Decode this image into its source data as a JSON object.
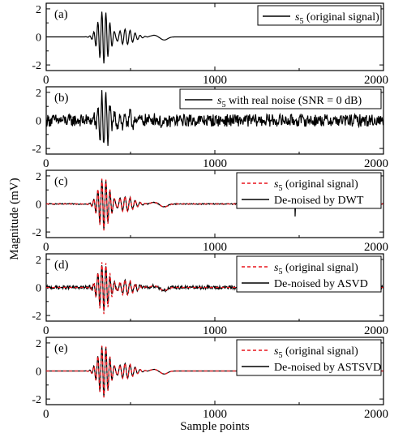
{
  "figure": {
    "ylabel": "Magnitude (mV)",
    "xlabel": "Sample points"
  },
  "chart_data": [
    {
      "type": "line",
      "panel_label": "(a)",
      "xlim": [
        0,
        2000
      ],
      "ylim": [
        -2.4,
        2.4
      ],
      "x_ticks": [
        "0",
        "1000",
        "2000"
      ],
      "y_ticks": [
        "-2",
        "0",
        "2"
      ],
      "legend_position": "top-right",
      "series": [
        {
          "name": "s5 (original signal)",
          "legend_text": " (original signal)",
          "color": "#000000",
          "dash": "solid",
          "noise": 0,
          "burst_scale": 1.0
        }
      ]
    },
    {
      "type": "line",
      "panel_label": "(b)",
      "xlim": [
        0,
        2000
      ],
      "ylim": [
        -2.4,
        2.4
      ],
      "x_ticks": [
        "0",
        "1000",
        "2000"
      ],
      "y_ticks": [
        "-2",
        "0",
        "2"
      ],
      "legend_position": "top-right",
      "series": [
        {
          "name": "s5 with real noise (SNR = 0 dB)",
          "legend_text": " with real noise (SNR = 0 dB)",
          "color": "#000000",
          "dash": "solid",
          "noise": 0.26,
          "burst_scale": 1.0
        }
      ]
    },
    {
      "type": "line",
      "panel_label": "(c)",
      "xlim": [
        0,
        2000
      ],
      "ylim": [
        -2.4,
        2.4
      ],
      "x_ticks": [
        "0",
        "1000",
        "2000"
      ],
      "y_ticks": [
        "-2",
        "0",
        "2"
      ],
      "legend_position": "top-right",
      "series": [
        {
          "name": "De-noised by DWT",
          "legend_text": "De-noised by DWT",
          "color": "#000000",
          "dash": "solid",
          "noise": 0.02,
          "burst_scale": 0.95,
          "spike_at": 1475,
          "spike_amp": 0.35
        },
        {
          "name": "s5 (original signal)",
          "legend_text": " (original signal)",
          "color": "#e8141b",
          "dash": "dashed",
          "noise": 0,
          "burst_scale": 1.0
        }
      ]
    },
    {
      "type": "line",
      "panel_label": "(d)",
      "xlim": [
        0,
        2000
      ],
      "ylim": [
        -2.4,
        2.4
      ],
      "x_ticks": [
        "0",
        "1000",
        "2000"
      ],
      "y_ticks": [
        "-2",
        "0",
        "2"
      ],
      "legend_position": "top-right",
      "series": [
        {
          "name": "De-noised by ASVD",
          "legend_text": "De-noised by ASVD",
          "color": "#000000",
          "dash": "solid",
          "noise": 0.07,
          "burst_scale": 0.85
        },
        {
          "name": "s5 (original signal)",
          "legend_text": " (original signal)",
          "color": "#e8141b",
          "dash": "dashed",
          "noise": 0,
          "burst_scale": 1.0
        }
      ]
    },
    {
      "type": "line",
      "panel_label": "(e)",
      "xlim": [
        0,
        2000
      ],
      "ylim": [
        -2.4,
        2.4
      ],
      "x_ticks": [
        "0",
        "1000",
        "2000"
      ],
      "y_ticks": [
        "-2",
        "0",
        "2"
      ],
      "legend_position": "top-right",
      "series": [
        {
          "name": "De-noised by ASTSVD",
          "legend_text": "De-noised by ASTSVD",
          "color": "#000000",
          "dash": "solid",
          "noise": 0,
          "burst_scale": 0.98
        },
        {
          "name": "s5 (original signal)",
          "legend_text": " (original signal)",
          "color": "#e8141b",
          "dash": "dashed",
          "noise": 0,
          "burst_scale": 1.0
        }
      ]
    }
  ]
}
